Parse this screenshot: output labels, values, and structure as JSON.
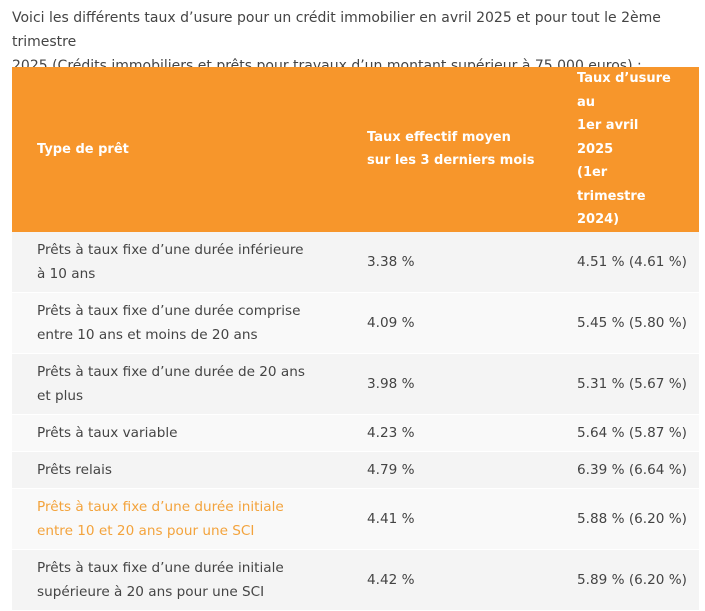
{
  "intro": {
    "line1": "Voici les différents taux d’usure pour un crédit immobilier en avril 2025 et pour tout le 2ème trimestre",
    "line2": "2025 (Crédits immobiliers et prêts pour travaux d’un montant supérieur à 75 000 euros) :"
  },
  "table": {
    "header": {
      "col1": "Type de prêt",
      "col2_line1": "Taux effectif moyen",
      "col2_line2": "sur les 3 derniers mois",
      "col3_line1": "Taux d’usure au",
      "col3_line2": "1er avril 2025",
      "col3_line3": "(1er trimestre",
      "col3_line4": "2024)"
    },
    "rows": [
      {
        "type_line1": "Prêts à taux fixe d’une durée inférieure",
        "type_line2": "à 10 ans",
        "taux_moyen": "3.38 %",
        "taux_usure": "4.51 % (4.61 %)"
      },
      {
        "type_line1": "Prêts à taux fixe d’une durée comprise",
        "type_line2": "entre 10 ans et moins de 20 ans",
        "taux_moyen": "4.09 %",
        "taux_usure": "5.45 % (5.80 %)"
      },
      {
        "type_line1": "Prêts à taux fixe d’une durée de 20 ans",
        "type_line2": "et plus",
        "taux_moyen": "3.98 %",
        "taux_usure": "5.31 % (5.67 %)"
      },
      {
        "type_line1": "Prêts à taux variable",
        "taux_moyen": "4.23 %",
        "taux_usure": "5.64 % (5.87 %)"
      },
      {
        "type_line1": "Prêts relais",
        "taux_moyen": "4.79 %",
        "taux_usure": "6.39 % (6.64 %)"
      },
      {
        "type_line1": "Prêts à taux fixe d’une durée initiale",
        "type_line2": "entre 10 et 20 ans pour une SCI",
        "taux_moyen": "4.41 %",
        "taux_usure": "5.88 % (6.20 %)"
      },
      {
        "type_line1": "Prêts à taux fixe d’une durée initiale",
        "type_line2": "supérieure à 20 ans pour une SCI",
        "taux_moyen": "4.42 %",
        "taux_usure": "5.89 % (6.20 %)"
      }
    ]
  },
  "colors": {
    "header_background": "#f7962b",
    "highlight_text": "#f3a33c",
    "body_text": "#444444"
  }
}
